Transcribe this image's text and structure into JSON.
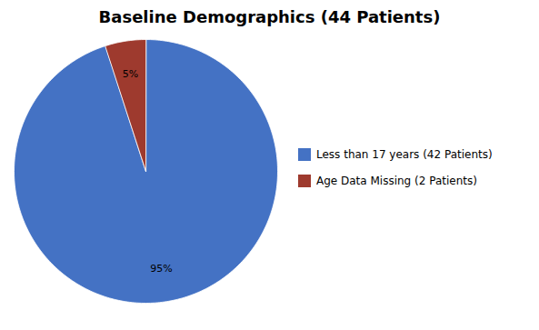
{
  "chart_data": {
    "type": "pie",
    "title": "Baseline Demographics (44 Patients)",
    "categories": [
      "Less than 17 years (42 Patients)",
      "Age Data Missing (2 Patients)"
    ],
    "values": [
      95,
      5
    ],
    "value_labels": [
      "95%",
      "5%"
    ],
    "colors": [
      "#4472C4",
      "#9E3A2E"
    ],
    "data_labels": true,
    "legend": "right"
  }
}
